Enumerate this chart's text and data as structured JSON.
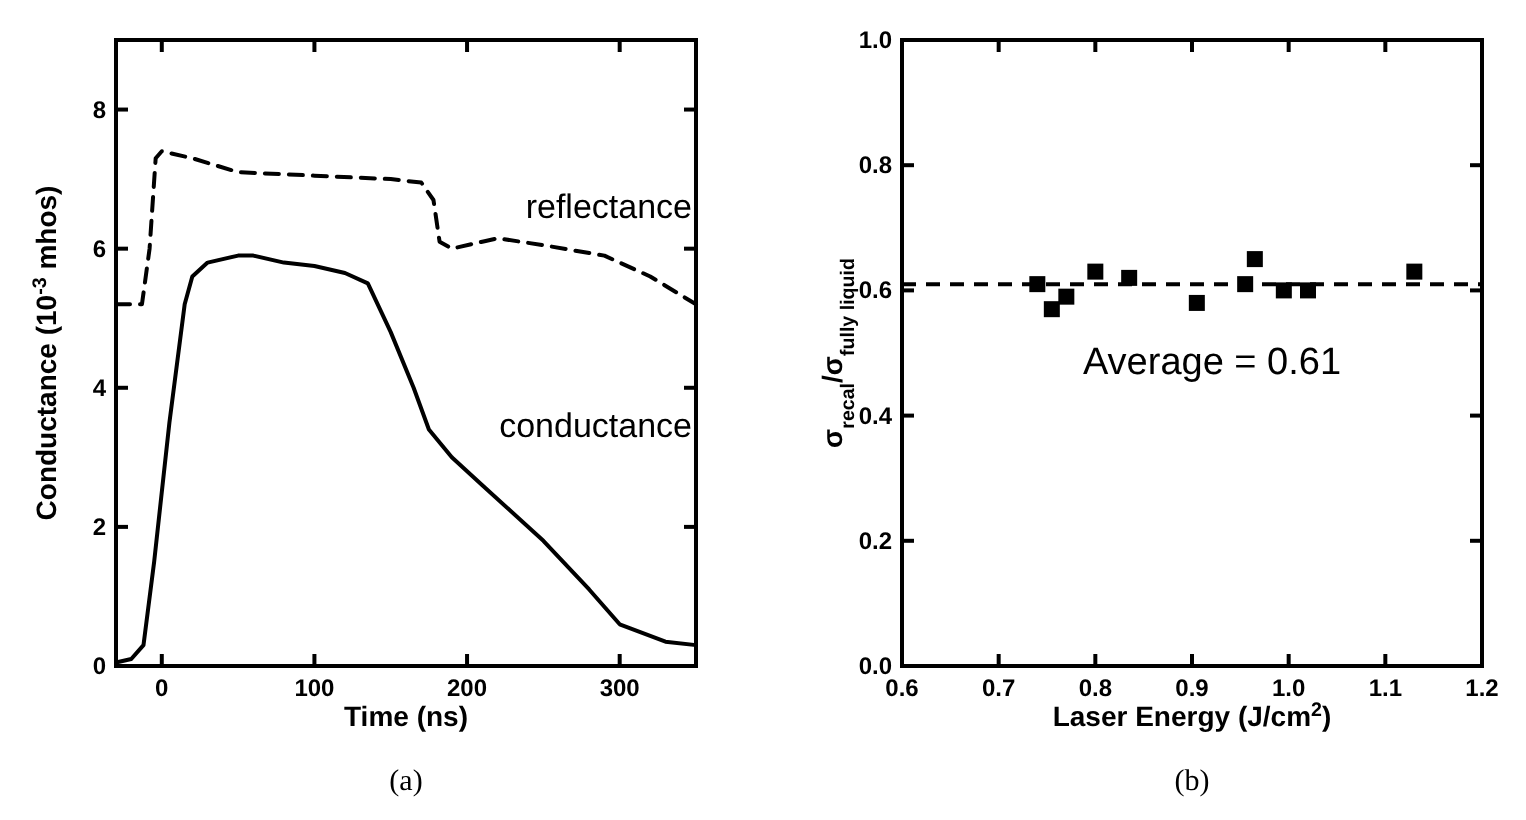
{
  "chart_data": [
    {
      "type": "line",
      "title": "(a)",
      "xlabel": "Time (ns)",
      "ylabel": "Conductance (10$^{-3}$ mhos)",
      "xlim": [
        -30,
        350
      ],
      "ylim": [
        0,
        9
      ],
      "xticks": [
        0,
        100,
        200,
        300
      ],
      "yticks": [
        0,
        2,
        4,
        6,
        8
      ],
      "grid": false,
      "series": [
        {
          "name": "reflectance",
          "color": "#000000",
          "line_style": "dashed",
          "x": [
            -30,
            -13,
            -8,
            -4,
            0,
            20,
            50,
            100,
            150,
            170,
            178,
            182,
            190,
            210,
            220,
            250,
            290,
            320,
            350
          ],
          "values": [
            5.2,
            5.2,
            6.0,
            7.3,
            7.4,
            7.3,
            7.1,
            7.05,
            7.0,
            6.95,
            6.7,
            6.1,
            6.0,
            6.1,
            6.15,
            6.05,
            5.9,
            5.6,
            5.2
          ]
        },
        {
          "name": "conductance",
          "color": "#000000",
          "line_style": "solid",
          "x": [
            -30,
            -20,
            -12,
            -5,
            5,
            15,
            20,
            30,
            50,
            60,
            80,
            100,
            120,
            135,
            150,
            165,
            175,
            190,
            210,
            250,
            280,
            300,
            330,
            350
          ],
          "values": [
            0.05,
            0.1,
            0.3,
            1.5,
            3.5,
            5.2,
            5.6,
            5.8,
            5.9,
            5.9,
            5.8,
            5.75,
            5.65,
            5.5,
            4.8,
            4.0,
            3.4,
            3.0,
            2.6,
            1.8,
            1.1,
            0.6,
            0.35,
            0.3
          ]
        }
      ]
    },
    {
      "type": "scatter",
      "title": "(b)",
      "xlabel": "Laser Energy (J/cm$^{2}$)",
      "ylabel": "σ$_{recal}$/σ$_{fully liquid}$",
      "xlim": [
        0.6,
        1.2
      ],
      "ylim": [
        0,
        1
      ],
      "xticks": [
        0.6,
        0.7,
        0.8,
        0.9,
        {
          "value": 1,
          "label": "1.0"
        },
        1.1,
        1.2
      ],
      "yticks": [
        {
          "value": 0,
          "label": "0.0"
        },
        0.2,
        0.4,
        0.6,
        0.8,
        {
          "value": 1,
          "label": "1.0"
        }
      ],
      "grid": false,
      "marker": "square",
      "series": [
        {
          "color": "#000000",
          "x": [
            0.74,
            0.755,
            0.77,
            0.8,
            0.835,
            0.905,
            0.955,
            0.965,
            0.995,
            1.02,
            1.13
          ],
          "values": [
            0.61,
            0.57,
            0.59,
            0.63,
            0.62,
            0.58,
            0.61,
            0.65,
            0.6,
            0.6,
            0.63
          ]
        }
      ],
      "ref_lines": [
        {
          "axis": "y",
          "value": 0.61,
          "label": "Average = 0.61",
          "line_style": "dashed",
          "color": "#000000"
        }
      ]
    }
  ]
}
